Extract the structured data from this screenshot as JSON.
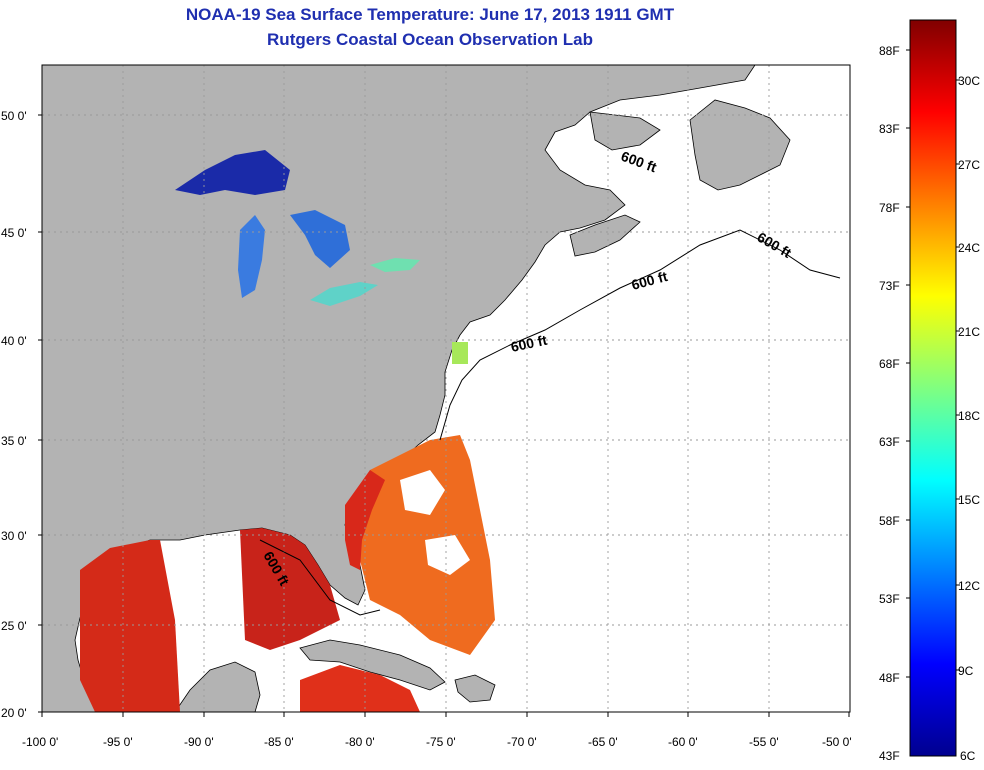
{
  "title": "NOAA-19 Sea Surface Temperature:  June 17, 2013 1911 GMT",
  "subtitle": "Rutgers Coastal Ocean Observation Lab",
  "lat_ticks": [
    "50 0'",
    "45 0'",
    "40 0'",
    "35 0'",
    "30 0'",
    "25 0'",
    "20 0'"
  ],
  "lon_ticks": [
    "-100 0'",
    "-95 0'",
    "-90 0'",
    "-85 0'",
    "-80 0'",
    "-75 0'",
    "-70 0'",
    "-65 0'",
    "-60 0'",
    "-55 0'",
    "-50 0'"
  ],
  "contour_labels": [
    "600 ft",
    "600 ft",
    "600 ft",
    "600 ft",
    "600 ft"
  ],
  "colorbar": {
    "fahrenheit": [
      "88F",
      "83F",
      "78F",
      "73F",
      "68F",
      "63F",
      "58F",
      "53F",
      "48F",
      "43F"
    ],
    "celsius": [
      "30C",
      "27C",
      "24C",
      "21C",
      "18C",
      "15C",
      "12C",
      "9C",
      "6C"
    ]
  },
  "colors": {
    "land": "#b3b3b3",
    "ocean_nodata": "#ffffff",
    "title": "#1f2fb0",
    "grid": "#9a9a9a"
  }
}
